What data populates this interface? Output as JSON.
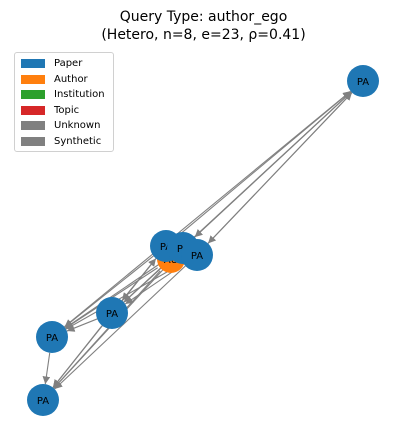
{
  "title": {
    "line1": "Query Type: author_ego",
    "line2": "(Hetero, n=8, e=23, ρ=0.41)"
  },
  "legend": [
    {
      "label": "Paper",
      "color": "#1f77b4"
    },
    {
      "label": "Author",
      "color": "#ff7f0e"
    },
    {
      "label": "Institution",
      "color": "#2ca02c"
    },
    {
      "label": "Topic",
      "color": "#d62728"
    },
    {
      "label": "Unknown",
      "color": "#808080"
    },
    {
      "label": "Synthetic",
      "color": "#808080"
    }
  ],
  "colors": {
    "paper": "#1f77b4",
    "author": "#ff7f0e",
    "edge": "#808080"
  },
  "nodes": [
    {
      "id": "p_top",
      "label": "PA",
      "type": "paper"
    },
    {
      "id": "au",
      "label": "AU",
      "type": "author"
    },
    {
      "id": "p_c1",
      "label": "PA",
      "type": "paper"
    },
    {
      "id": "p_c2",
      "label": "PA",
      "type": "paper"
    },
    {
      "id": "p_c3",
      "label": "PA",
      "type": "paper"
    },
    {
      "id": "p_mid",
      "label": "PA",
      "type": "paper"
    },
    {
      "id": "p_left",
      "label": "PA",
      "type": "paper"
    },
    {
      "id": "p_bot",
      "label": "PA",
      "type": "paper"
    }
  ]
}
